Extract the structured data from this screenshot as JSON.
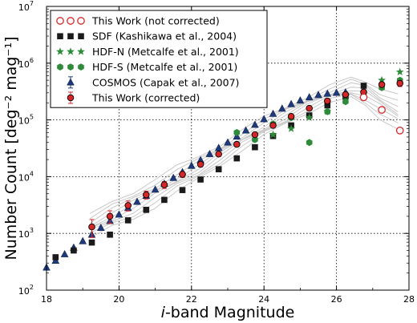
{
  "chart_data": {
    "type": "scatter",
    "title": "",
    "xlabel_italic": "i",
    "xlabel_rest": "-band Magnitude",
    "ylabel": "Number Count [deg⁻² mag⁻¹]",
    "xlim": [
      18,
      28
    ],
    "ylim_log10": [
      2,
      7
    ],
    "log_y": true,
    "grid": true,
    "legend_position": "upper-left",
    "x_ticks": [
      "18",
      "20",
      "22",
      "24",
      "26",
      "28"
    ],
    "x_tick_values": [
      18,
      20,
      22,
      24,
      26,
      28
    ],
    "y_tick_values": [
      2,
      3,
      4,
      5,
      6,
      7
    ],
    "y_tick_bases": [
      "10",
      "10",
      "10",
      "10",
      "10",
      "10"
    ],
    "y_tick_exponents": [
      "2",
      "3",
      "4",
      "5",
      "6",
      "7"
    ],
    "colors": {
      "red": "#d62728",
      "black": "#1a1a1a",
      "green": "#2e8b3a",
      "navy": "#1f3a7a",
      "band": "#c8c8c8",
      "grid": "#000000"
    },
    "band_curve": {
      "x": [
        19.2,
        19.8,
        20.4,
        21.0,
        21.6,
        22.2,
        22.8,
        23.4,
        24.0,
        24.6,
        25.2,
        25.8,
        26.4,
        26.8,
        27.2,
        27.7
      ],
      "log_y": [
        3.12,
        3.32,
        3.5,
        3.72,
        3.95,
        4.15,
        4.4,
        4.65,
        4.87,
        5.08,
        5.28,
        5.45,
        5.55,
        5.48,
        5.3,
        5.12
      ],
      "spread": [
        0.2,
        0.22,
        0.24,
        0.24,
        0.22,
        0.2,
        0.18,
        0.17,
        0.16,
        0.15,
        0.14,
        0.14,
        0.18,
        0.22,
        0.26,
        0.3
      ]
    },
    "series": [
      {
        "name": "This Work (not corrected)",
        "marker": "circle-open",
        "color": "#d62728",
        "x": [
          26.75,
          27.25,
          27.75
        ],
        "y": [
          250000,
          150000,
          65000
        ]
      },
      {
        "name": "SDF (Kashikawa et al., 2004)",
        "marker": "square",
        "color": "#1a1a1a",
        "x": [
          18.25,
          18.75,
          19.25,
          19.75,
          20.25,
          20.75,
          21.25,
          21.75,
          22.25,
          22.75,
          23.25,
          23.75,
          24.25,
          24.75,
          25.25,
          25.75,
          26.25,
          26.75
        ],
        "y": [
          380,
          500,
          690,
          950,
          1700,
          2600,
          3900,
          5800,
          8900,
          13500,
          21000,
          33000,
          52000,
          80000,
          120000,
          180000,
          260000,
          400000
        ]
      },
      {
        "name": "HDF-N (Metcalfe et al., 2001)",
        "marker": "star",
        "color": "#2e8b3a",
        "x": [
          24.25,
          24.75,
          25.25,
          25.75,
          26.25,
          26.75,
          27.25,
          27.75
        ],
        "y": [
          55000,
          70000,
          110000,
          140000,
          270000,
          300000,
          500000,
          700000
        ]
      },
      {
        "name": "HDF-S (Metcalfe et al., 2001)",
        "marker": "hexagon",
        "color": "#2e8b3a",
        "x": [
          23.25,
          23.75,
          24.25,
          24.75,
          25.25,
          25.75,
          26.25,
          26.75,
          27.25,
          27.75
        ],
        "y": [
          60000,
          45000,
          85000,
          110000,
          40000,
          140000,
          210000,
          300000,
          370000,
          500000
        ]
      },
      {
        "name": "COSMOS (Capak et al., 2007)",
        "marker": "triangle",
        "color": "#1f3a7a",
        "x": [
          18.0,
          18.25,
          18.5,
          18.75,
          19.0,
          19.25,
          19.5,
          19.75,
          20.0,
          20.25,
          20.5,
          20.75,
          21.0,
          21.25,
          21.5,
          21.75,
          22.0,
          22.25,
          22.5,
          22.75,
          23.0,
          23.25,
          23.5,
          23.75,
          24.0,
          24.25,
          24.5,
          24.75,
          25.0,
          25.25,
          25.5,
          25.75,
          26.0,
          26.25
        ],
        "y": [
          250,
          330,
          430,
          560,
          730,
          950,
          1250,
          1650,
          2150,
          2800,
          3600,
          4600,
          5900,
          7500,
          9500,
          12000,
          15500,
          19500,
          25000,
          32000,
          40000,
          51000,
          65000,
          82000,
          103000,
          128000,
          158000,
          190000,
          220000,
          250000,
          275000,
          290000,
          300000,
          305000
        ]
      },
      {
        "name": "This Work (corrected)",
        "marker": "circle-errorbar",
        "color": "#d62728",
        "x": [
          19.25,
          19.75,
          20.25,
          20.75,
          21.25,
          21.75,
          22.25,
          22.75,
          23.25,
          23.75,
          24.25,
          24.75,
          25.25,
          25.75,
          26.25,
          26.75,
          27.25,
          27.75
        ],
        "y": [
          1300,
          2000,
          3100,
          4800,
          7200,
          11000,
          16500,
          25000,
          37000,
          55000,
          80000,
          115000,
          160000,
          215000,
          280000,
          310000,
          420000,
          440000
        ],
        "yerr_frac": [
          0.35,
          0.25,
          0.2,
          0.16,
          0.14,
          0.12,
          0.1,
          0.09,
          0.08,
          0.07,
          0.06,
          0.06,
          0.06,
          0.06,
          0.06,
          0.08,
          0.1,
          0.12
        ]
      }
    ]
  }
}
